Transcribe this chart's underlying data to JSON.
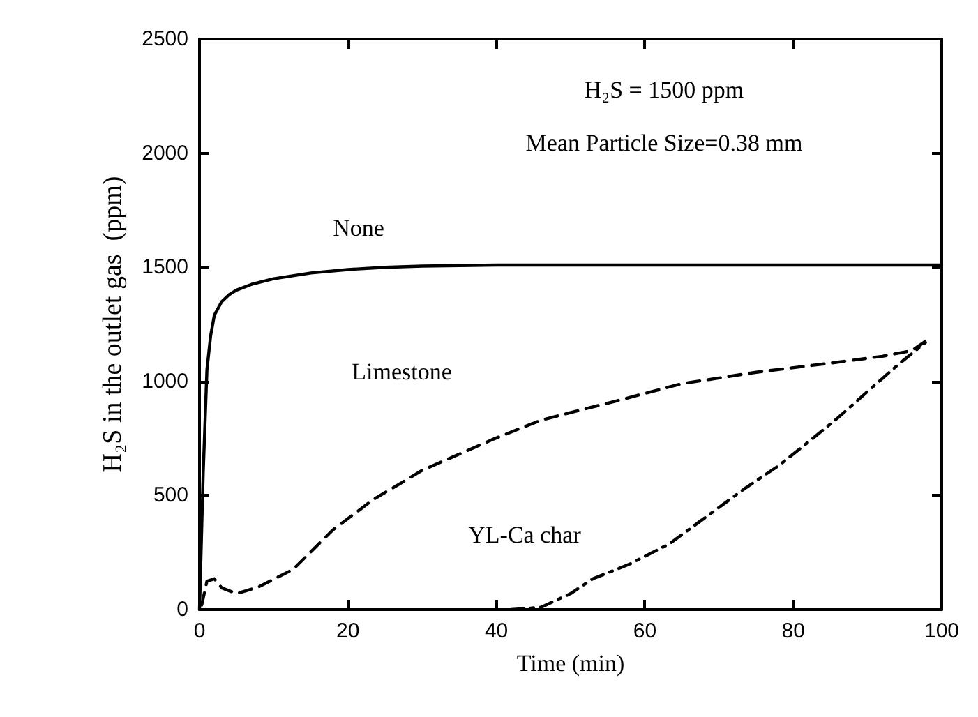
{
  "chart_data": {
    "type": "line",
    "xlabel": "Time (min)",
    "ylabel": "H₂S in the outlet gas  (ppm)",
    "xlim": [
      0,
      100
    ],
    "xticks": [
      0,
      20,
      40,
      60,
      80,
      100
    ],
    "ylim": [
      0,
      2500
    ],
    "yticks": [
      0,
      500,
      1000,
      1500,
      2000,
      2500
    ],
    "grid": false,
    "legend": false,
    "marker": "none",
    "series": [
      {
        "name": "None",
        "color": "#000000",
        "line_style": "solid",
        "x": [
          0,
          0.5,
          1,
          1.5,
          2,
          3,
          4,
          5,
          7,
          10,
          15,
          20,
          25,
          30,
          40,
          60,
          80,
          100
        ],
        "values": [
          0,
          600,
          1050,
          1200,
          1290,
          1350,
          1380,
          1400,
          1425,
          1450,
          1475,
          1490,
          1500,
          1505,
          1510,
          1510,
          1510,
          1510
        ]
      },
      {
        "name": "Limestone",
        "color": "#000000",
        "line_style": "dashed",
        "x": [
          0.3,
          1,
          2,
          3,
          5,
          8,
          12.6,
          18,
          23.4,
          30,
          39.6,
          46,
          56.6,
          65,
          75,
          85,
          92,
          96,
          98
        ],
        "values": [
          20,
          124,
          135,
          95,
          70,
          100,
          176,
          350,
          482,
          610,
          747,
          830,
          918,
          990,
          1040,
          1080,
          1110,
          1135,
          1180
        ]
      },
      {
        "name": "YL-Ca char",
        "color": "#000000",
        "line_style": "dashdot",
        "x": [
          42,
          46,
          50,
          53,
          58,
          63.3,
          68,
          73.4,
          78,
          81.6,
          86,
          90.3,
          94,
          97.8
        ],
        "values": [
          0,
          10,
          70,
          135,
          200,
          288,
          400,
          529,
          630,
          723,
          840,
          964,
          1070,
          1170
        ]
      }
    ],
    "annotations": [
      "H₂S = 1500 ppm",
      "Mean Particle Size=0.38 mm"
    ]
  }
}
